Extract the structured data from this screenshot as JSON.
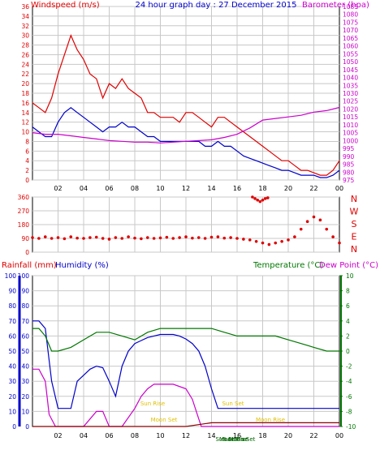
{
  "colors": {
    "red": "#e00000",
    "blue": "#0000cc",
    "magenta": "#cc00cc",
    "green": "#007700",
    "darkgreen": "#006600",
    "yellow": "#e0c000",
    "grid": "#c8c8c8",
    "axis": "#000000"
  },
  "chart_data": [
    {
      "type": "line",
      "title": "24 hour graph day : 27 December 2015",
      "ylabel_left": "Windspeed (m/s)",
      "ylabel_right": "Barometer (hpa)",
      "x_ticks": [
        "02",
        "04",
        "06",
        "08",
        "10",
        "12",
        "14",
        "16",
        "18",
        "20",
        "22",
        "00"
      ],
      "ylim_left": [
        0,
        36
      ],
      "ylim_right": [
        975,
        1085
      ],
      "y_ticks_left": [
        0,
        2,
        4,
        6,
        8,
        10,
        12,
        14,
        16,
        18,
        20,
        22,
        24,
        26,
        28,
        30,
        32,
        34,
        36
      ],
      "y_ticks_right": [
        975,
        980,
        985,
        990,
        995,
        1000,
        1005,
        1010,
        1015,
        1020,
        1025,
        1030,
        1035,
        1040,
        1045,
        1050,
        1055,
        1060,
        1065,
        1070,
        1075,
        1080,
        1085
      ],
      "grid": true,
      "series": [
        {
          "name": "Windspeed gust",
          "color": "red",
          "x": [
            0,
            0.5,
            1,
            1.5,
            2,
            2.5,
            3,
            3.5,
            4,
            4.5,
            5,
            5.5,
            6,
            6.5,
            7,
            7.5,
            8,
            8.5,
            9,
            9.5,
            10,
            10.5,
            11,
            11.5,
            12,
            12.5,
            13,
            13.5,
            14,
            14.5,
            15,
            15.5,
            16,
            16.5,
            17,
            17.5,
            18,
            18.5,
            19,
            19.5,
            20,
            20.5,
            21,
            21.5,
            22,
            22.5,
            23,
            23.5,
            24
          ],
          "values": [
            16,
            15,
            14,
            17,
            22,
            26,
            30,
            27,
            25,
            22,
            21,
            17,
            20,
            19,
            21,
            19,
            18,
            17,
            14,
            14,
            13,
            13,
            13,
            12,
            14,
            14,
            13,
            12,
            11,
            13,
            13,
            12,
            11,
            10,
            9,
            8,
            7,
            6,
            5,
            4,
            4,
            3,
            2,
            2,
            1.5,
            1,
            1,
            2,
            4
          ]
        },
        {
          "name": "Windspeed average",
          "color": "blue",
          "x": [
            0,
            0.5,
            1,
            1.5,
            2,
            2.5,
            3,
            3.5,
            4,
            4.5,
            5,
            5.5,
            6,
            6.5,
            7,
            7.5,
            8,
            8.5,
            9,
            9.5,
            10,
            10.5,
            11,
            11.5,
            12,
            12.5,
            13,
            13.5,
            14,
            14.5,
            15,
            15.5,
            16,
            16.5,
            17,
            17.5,
            18,
            18.5,
            19,
            19.5,
            20,
            20.5,
            21,
            21.5,
            22,
            22.5,
            23,
            23.5,
            24
          ],
          "values": [
            11,
            10,
            9,
            9,
            12,
            14,
            15,
            14,
            13,
            12,
            11,
            10,
            11,
            11,
            12,
            11,
            11,
            10,
            9,
            9,
            8,
            8,
            8,
            8,
            8,
            8,
            8,
            7,
            7,
            8,
            7,
            7,
            6,
            5,
            4.5,
            4,
            3.5,
            3,
            2.5,
            2,
            2,
            1.5,
            1,
            1,
            1,
            0.5,
            0.5,
            1,
            2
          ]
        },
        {
          "name": "Barometer",
          "color": "magenta",
          "axis": "right",
          "x": [
            0,
            1,
            2,
            3,
            4,
            5,
            6,
            7,
            8,
            9,
            10,
            11,
            12,
            13,
            14,
            15,
            16,
            17,
            18,
            19,
            20,
            21,
            22,
            23,
            23.5,
            24
          ],
          "values": [
            1005,
            1004,
            1004,
            1003,
            1002,
            1001,
            1000,
            999.5,
            999,
            999,
            998.5,
            999,
            999.5,
            1000,
            1000.5,
            1002,
            1004,
            1008,
            1013,
            1014,
            1015,
            1016,
            1018,
            1019,
            1020,
            1021
          ]
        }
      ]
    },
    {
      "type": "scatter",
      "ylabel_right": [
        "N",
        "W",
        "S",
        "E",
        "N"
      ],
      "y_ticks_left": [
        0,
        90,
        180,
        270,
        360
      ],
      "ylim": [
        0,
        360
      ],
      "series": [
        {
          "name": "Wind direction",
          "color": "red",
          "x": [
            0,
            0.5,
            1,
            1.5,
            2,
            2.5,
            3,
            3.5,
            4,
            4.5,
            5,
            5.5,
            6,
            6.5,
            7,
            7.5,
            8,
            8.5,
            9,
            9.5,
            10,
            10.5,
            11,
            11.5,
            12,
            12.5,
            13,
            13.5,
            14,
            14.5,
            15,
            15.5,
            16,
            16.5,
            17,
            17.5,
            18,
            18.5,
            19,
            19.5,
            20,
            20.5,
            21,
            21.5,
            22,
            22.5,
            23,
            23.5,
            24
          ],
          "values": [
            95,
            90,
            100,
            90,
            95,
            88,
            100,
            92,
            90,
            95,
            98,
            90,
            85,
            95,
            90,
            100,
            92,
            88,
            95,
            90,
            93,
            97,
            90,
            95,
            100,
            92,
            95,
            90,
            98,
            100,
            92,
            95,
            90,
            85,
            80,
            70,
            60,
            50,
            60,
            70,
            80,
            100,
            150,
            200,
            230,
            210,
            150,
            100,
            60
          ]
        },
        {
          "name": "Wind direction (north)",
          "color": "red",
          "x": [
            17.2,
            17.4,
            17.6,
            17.8,
            18.0,
            18.2,
            18.4
          ],
          "values": [
            360,
            350,
            340,
            330,
            340,
            350,
            355
          ]
        }
      ]
    },
    {
      "type": "line",
      "ylabel_left": "Rainfall (mm)",
      "ylabel_left_2": "Humidity (%)",
      "ylabel_right": "Temperature (°C)",
      "ylabel_right_2": "Dew Point (°C)",
      "ylim_left": [
        0,
        100
      ],
      "ylim_right": [
        -10,
        10
      ],
      "y_ticks_left": [
        0,
        10,
        20,
        30,
        40,
        50,
        60,
        70,
        80,
        90,
        100
      ],
      "y_ticks_right": [
        -10,
        -8,
        -6,
        -4,
        -2,
        0,
        2,
        4,
        6,
        8,
        10
      ],
      "x_ticks": [
        "02",
        "04",
        "06",
        "08",
        "10",
        "12",
        "14",
        "16",
        "18",
        "20",
        "22",
        "00"
      ],
      "annotations": [
        "Sun Rise",
        "Moon Set",
        "Sun Set",
        "Moon Rise",
        "Sun Rise",
        "Sun Set",
        "Moon Set",
        "Moon Rise"
      ],
      "series": [
        {
          "name": "Humidity",
          "color": "blue",
          "axis": "left",
          "x": [
            0,
            0.5,
            1,
            1.5,
            2,
            2.5,
            3,
            3.5,
            4,
            4.5,
            5,
            5.5,
            6,
            6.5,
            7,
            7.5,
            8,
            8.5,
            9,
            9.5,
            10,
            10.5,
            11,
            11.5,
            12,
            12.5,
            13,
            13.5,
            14,
            14.5,
            15,
            16,
            17,
            18,
            19,
            20,
            21,
            22,
            23,
            24
          ],
          "values": [
            70,
            70,
            65,
            30,
            12,
            12,
            12,
            30,
            34,
            38,
            40,
            39,
            30,
            20,
            40,
            50,
            55,
            57,
            59,
            60,
            61,
            61,
            61,
            60,
            58,
            55,
            50,
            40,
            25,
            12,
            12,
            12,
            12,
            12,
            12,
            12,
            12,
            12,
            12,
            12
          ]
        },
        {
          "name": "Rainfall",
          "color": "magenta",
          "axis": "left",
          "x": [
            0,
            0.5,
            1,
            1.3,
            1.8,
            2,
            3,
            4,
            4.5,
            5,
            5.5,
            6,
            7,
            8,
            8.5,
            9,
            9.5,
            10,
            11,
            12,
            12.5,
            13,
            13.2,
            14,
            24
          ],
          "values": [
            38,
            38,
            30,
            8,
            0,
            0,
            0,
            0,
            5,
            10,
            10,
            0,
            0,
            12,
            20,
            25,
            28,
            28,
            28,
            25,
            18,
            5,
            0,
            0,
            0
          ]
        },
        {
          "name": "Temperature",
          "color": "green",
          "axis": "right",
          "x": [
            0,
            0.5,
            1,
            1.5,
            2,
            3,
            4,
            5,
            6,
            7,
            8,
            9,
            10,
            11,
            12,
            13,
            14,
            15,
            16,
            17,
            18,
            19,
            20,
            21,
            22,
            23,
            24
          ],
          "values": [
            3,
            3,
            2,
            0,
            0,
            0.5,
            1.5,
            2.5,
            2.5,
            2,
            1.5,
            2.5,
            3,
            3,
            3,
            3,
            3,
            2.5,
            2,
            2,
            2,
            2,
            1.5,
            1,
            0.5,
            0,
            0
          ]
        },
        {
          "name": "Dew Point",
          "color": "darkred",
          "axis": "right",
          "x": [
            0,
            4,
            8,
            12,
            14,
            16,
            18,
            20,
            22,
            24
          ],
          "values": [
            -10,
            -10,
            -10,
            -10,
            -9.5,
            -9.5,
            -9.5,
            -9.5,
            -9.5,
            -9.5
          ]
        }
      ]
    }
  ],
  "labels": {
    "top_title": "24 hour graph day : 27 December 2015",
    "windspeed": "Windspeed (m/s)",
    "barometer": "Barometer (hpa)",
    "rainfall": "Rainfall (mm)",
    "humidity": "Humidity (%)",
    "temperature": "Temperature (°C)",
    "dewpoint": "Dew Point (°C)"
  }
}
